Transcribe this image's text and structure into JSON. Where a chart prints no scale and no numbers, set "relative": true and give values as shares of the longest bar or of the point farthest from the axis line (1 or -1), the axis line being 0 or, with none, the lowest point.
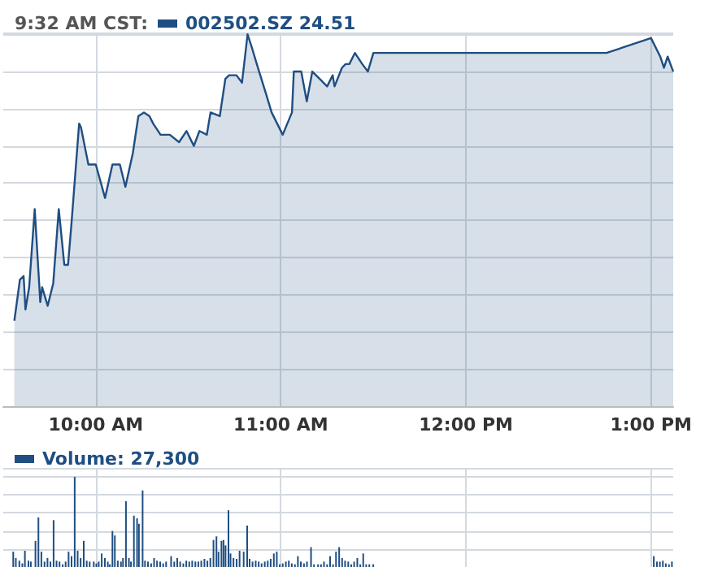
{
  "chart_data": [
    {
      "type": "area",
      "title": "9:32 AM CST:",
      "relative": true,
      "legend": "top left",
      "grid": true,
      "xlim": [
        9.5,
        13.12
      ],
      "xticks": [
        {
          "value": 10,
          "label": "10:00 AM"
        },
        {
          "value": 11,
          "label": "11:00 AM"
        },
        {
          "value": 12,
          "label": "12:00 PM"
        },
        {
          "value": 13,
          "label": "1:00 PM"
        }
      ],
      "series": [
        {
          "name": "002502.SZ 24.51",
          "color": "#1f4e82",
          "x": [
            9.56,
            9.59,
            9.61,
            9.62,
            9.64,
            9.67,
            9.7,
            9.71,
            9.74,
            9.77,
            9.8,
            9.83,
            9.85,
            9.87,
            9.91,
            9.92,
            9.96,
            10.0,
            10.05,
            10.09,
            10.13,
            10.16,
            10.2,
            10.23,
            10.26,
            10.29,
            10.31,
            10.35,
            10.4,
            10.45,
            10.49,
            10.53,
            10.56,
            10.6,
            10.62,
            10.67,
            10.7,
            10.72,
            10.76,
            10.79,
            10.82,
            10.84,
            10.87,
            10.92,
            10.95,
            11.01,
            11.06,
            11.07,
            11.11,
            11.14,
            11.17,
            11.21,
            11.25,
            11.28,
            11.29,
            11.33,
            11.35,
            11.37,
            11.4,
            11.44,
            11.47,
            11.5,
            12.76,
            13.0,
            13.05,
            13.07,
            13.09,
            13.12
          ],
          "values": [
            0.23,
            0.34,
            0.35,
            0.26,
            0.32,
            0.53,
            0.28,
            0.32,
            0.27,
            0.33,
            0.53,
            0.38,
            0.38,
            0.5,
            0.76,
            0.75,
            0.65,
            0.65,
            0.56,
            0.65,
            0.65,
            0.59,
            0.68,
            0.78,
            0.79,
            0.78,
            0.76,
            0.73,
            0.73,
            0.71,
            0.74,
            0.7,
            0.74,
            0.73,
            0.79,
            0.78,
            0.88,
            0.89,
            0.89,
            0.87,
            1,
            0.97,
            0.92,
            0.84,
            0.79,
            0.73,
            0.79,
            0.9,
            0.9,
            0.82,
            0.9,
            0.88,
            0.86,
            0.89,
            0.86,
            0.91,
            0.92,
            0.92,
            0.95,
            0.92,
            0.9,
            0.95,
            0.95,
            0.99,
            0.94,
            0.91,
            0.94,
            0.9
          ]
        }
      ]
    },
    {
      "type": "bar",
      "relative": true,
      "legend": "top left",
      "grid": true,
      "tick_labels": false,
      "xlim": [
        9.5,
        13.12
      ],
      "xticks": [
        {
          "value": 10,
          "label": null
        },
        {
          "value": 11,
          "label": null
        },
        {
          "value": 12,
          "label": null
        },
        {
          "value": 13,
          "label": null
        }
      ],
      "series": [
        {
          "name": "Volume: 27,300",
          "color": "#1f4e82",
          "x": [
            9.554,
            9.568,
            9.587,
            9.603,
            9.617,
            9.636,
            9.649,
            9.674,
            9.69,
            9.706,
            9.723,
            9.739,
            9.755,
            9.772,
            9.788,
            9.804,
            9.821,
            9.837,
            9.853,
            9.869,
            9.886,
            9.902,
            9.918,
            9.935,
            9.951,
            9.967,
            9.989,
            10.003,
            10.016,
            10.032,
            10.049,
            10.065,
            10.076,
            10.09,
            10.103,
            10.119,
            10.136,
            10.147,
            10.163,
            10.179,
            10.19,
            10.206,
            10.223,
            10.233,
            10.253,
            10.266,
            10.282,
            10.299,
            10.315,
            10.331,
            10.348,
            10.364,
            10.38,
            10.407,
            10.424,
            10.44,
            10.456,
            10.473,
            10.489,
            10.505,
            10.521,
            10.538,
            10.554,
            10.57,
            10.587,
            10.603,
            10.619,
            10.636,
            10.652,
            10.663,
            10.679,
            10.69,
            10.701,
            10.717,
            10.728,
            10.744,
            10.761,
            10.777,
            10.799,
            10.818,
            10.831,
            10.847,
            10.864,
            10.88,
            10.896,
            10.913,
            10.929,
            10.945,
            10.962,
            10.978,
            10.994,
            11.01,
            11.027,
            11.043,
            11.059,
            11.076,
            11.092,
            11.108,
            11.125,
            11.141,
            11.163,
            11.179,
            11.201,
            11.217,
            11.233,
            11.25,
            11.266,
            11.282,
            11.298,
            11.315,
            11.331,
            11.347,
            11.364,
            11.38,
            11.396,
            11.413,
            11.429,
            11.445,
            11.461,
            11.478,
            11.499,
            13.015,
            13.032,
            13.048,
            13.064,
            13.08,
            13.097,
            13.113
          ],
          "values": [
            0.17,
            0.1,
            0.07,
            0.04,
            0.18,
            0.07,
            0.06,
            0.29,
            0.55,
            0.17,
            0.06,
            0.1,
            0.06,
            0.52,
            0.07,
            0.06,
            0.03,
            0.06,
            0.17,
            0.12,
            1,
            0.18,
            0.1,
            0.29,
            0.07,
            0.06,
            0.06,
            0.04,
            0.06,
            0.15,
            0.1,
            0.06,
            0.03,
            0.4,
            0.35,
            0.07,
            0.06,
            0.1,
            0.73,
            0.1,
            0.06,
            0.57,
            0.54,
            0.48,
            0.85,
            0.07,
            0.06,
            0.04,
            0.1,
            0.07,
            0.06,
            0.04,
            0.06,
            0.12,
            0.06,
            0.1,
            0.06,
            0.04,
            0.07,
            0.06,
            0.07,
            0.06,
            0.06,
            0.07,
            0.09,
            0.07,
            0.1,
            0.3,
            0.34,
            0.17,
            0.29,
            0.3,
            0.24,
            0.63,
            0.15,
            0.1,
            0.09,
            0.18,
            0.17,
            0.46,
            0.09,
            0.06,
            0.07,
            0.06,
            0.04,
            0.06,
            0.07,
            0.09,
            0.15,
            0.17,
            0.03,
            0.04,
            0.06,
            0.07,
            0.04,
            0.03,
            0.12,
            0.06,
            0.04,
            0.06,
            0.22,
            0.03,
            0.03,
            0.03,
            0.06,
            0.03,
            0.12,
            0.03,
            0.17,
            0.22,
            0.1,
            0.07,
            0.06,
            0.03,
            0.06,
            0.1,
            0.03,
            0.15,
            0.03,
            0.03,
            0.03,
            0.12,
            0.06,
            0.06,
            0.07,
            0.04,
            0.03,
            0.06
          ]
        }
      ]
    }
  ]
}
